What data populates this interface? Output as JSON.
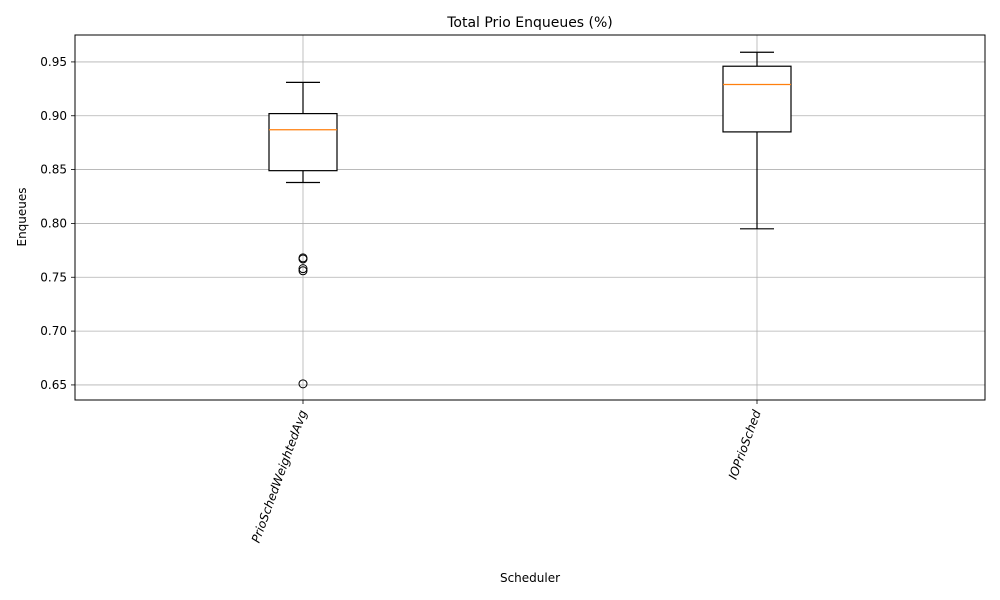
{
  "chart_data": {
    "type": "boxplot",
    "title": "Total Prio Enqueues (%)",
    "xlabel": "Scheduler",
    "ylabel": "Enqueues",
    "categories": [
      "PrioSchedWeightedAvg",
      "IOPrioSched"
    ],
    "ylim": [
      0.636,
      0.975
    ],
    "yticks": [
      0.65,
      0.7,
      0.75,
      0.8,
      0.85,
      0.9,
      0.95
    ],
    "ytick_labels": [
      "0.65",
      "0.70",
      "0.75",
      "0.80",
      "0.85",
      "0.90",
      "0.95"
    ],
    "grid": true,
    "boxes": [
      {
        "category": "PrioSchedWeightedAvg",
        "whisker_low": 0.838,
        "q1": 0.849,
        "median": 0.887,
        "q3": 0.902,
        "whisker_high": 0.931,
        "outliers": [
          0.768,
          0.767,
          0.758,
          0.756,
          0.651
        ]
      },
      {
        "category": "IOPrioSched",
        "whisker_low": 0.795,
        "q1": 0.885,
        "median": 0.929,
        "q3": 0.946,
        "whisker_high": 0.959,
        "outliers": []
      }
    ],
    "colors": {
      "box": "#000000",
      "median": "#ff7f0e",
      "grid": "#b0b0b0",
      "outlier": "#000000"
    }
  }
}
